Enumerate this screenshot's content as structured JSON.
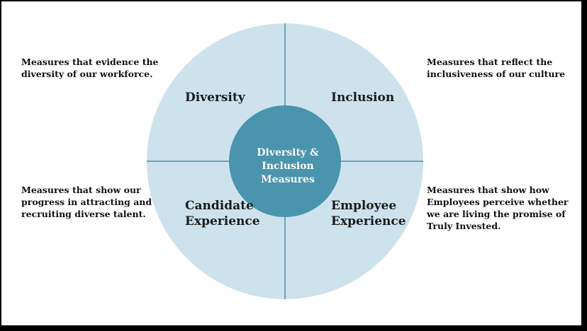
{
  "colors": {
    "outer_circle": "#cde2ed",
    "inner_circle": "#4a94ad",
    "divider": "#4a90ad",
    "background": "#ffffff"
  },
  "center": {
    "label": "Diversity &\nInclusion\nMeasures"
  },
  "quadrants": {
    "top_left": {
      "label": "Diversity",
      "description": "Measures that evidence the\ndiversity of our workforce."
    },
    "top_right": {
      "label": "Inclusion",
      "description": "Measures that reflect the\ninclusiveness of our culture"
    },
    "bottom_left": {
      "label": "Candidate\nExperience",
      "description": "Measures that show our\nprogress in attracting and\nrecruiting diverse talent."
    },
    "bottom_right": {
      "label": "Employee\nExperience",
      "description": "Measures that show how\nEmployees perceive whether\nwe are living the promise of\nTruly Invested."
    }
  }
}
